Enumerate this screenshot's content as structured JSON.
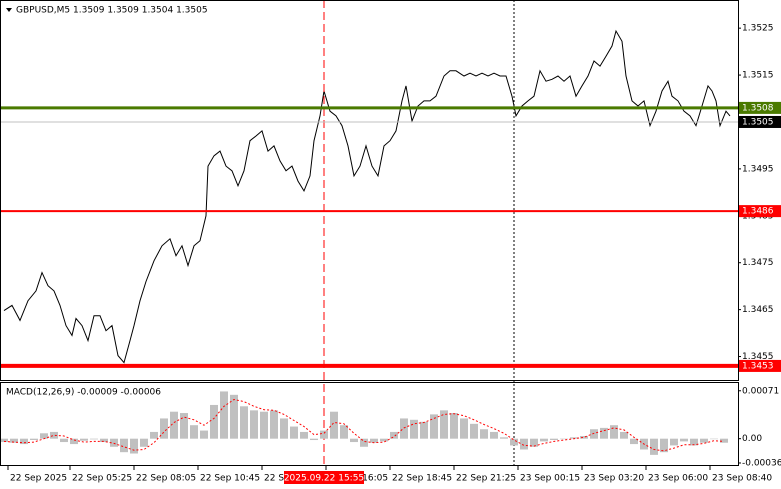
{
  "chart_data": [
    {
      "type": "line",
      "title": "GBPUSD,M5  1.3509 1.3509 1.3504 1.3505",
      "x": [
        0,
        4,
        8,
        12,
        16,
        19,
        22,
        25,
        28,
        31,
        34,
        36,
        39,
        42,
        45,
        48,
        51,
        54,
        57,
        60,
        63,
        65,
        68,
        71,
        75,
        79,
        83,
        86,
        89,
        92,
        95,
        98,
        101,
        102,
        105,
        108,
        111,
        114,
        117,
        120,
        123,
        126,
        129,
        132,
        135,
        138,
        141,
        144,
        147,
        150,
        153,
        155,
        158,
        160,
        163,
        166,
        169,
        172,
        175,
        178,
        181,
        184,
        187,
        190,
        193,
        196,
        199,
        201,
        204,
        207,
        210,
        213,
        216,
        220,
        223,
        226,
        230,
        233,
        236,
        239,
        242,
        245,
        248,
        251,
        254,
        256,
        259,
        262,
        265,
        268,
        271,
        274,
        277,
        280,
        283,
        286,
        289,
        292,
        295,
        298,
        301,
        304,
        306,
        309,
        311,
        314,
        317,
        320,
        323,
        326,
        329,
        332,
        334,
        337,
        340,
        343,
        346,
        349,
        352,
        354,
        356,
        358,
        361,
        363
      ],
      "series": [
        {
          "color": "#000000",
          "values": [
            1.34648,
            1.34659,
            1.34627,
            1.34669,
            1.3469,
            1.34729,
            1.34701,
            1.3469,
            1.34659,
            1.34616,
            1.34595,
            1.34631,
            1.34616,
            1.34584,
            1.34637,
            1.34637,
            1.34605,
            1.34616,
            1.34552,
            1.34537,
            1.34584,
            1.34616,
            1.34669,
            1.3471,
            1.34754,
            1.34786,
            1.34801,
            1.34765,
            1.34786,
            1.34744,
            1.34786,
            1.34797,
            1.3485,
            1.34956,
            1.34978,
            1.34988,
            1.34956,
            1.34946,
            1.34914,
            1.34946,
            1.3501,
            1.3502,
            1.35031,
            1.34988,
            1.34999,
            1.34967,
            1.34946,
            1.34956,
            1.34924,
            1.34903,
            1.34935,
            1.3501,
            1.35063,
            1.35116,
            1.35073,
            1.35063,
            1.35042,
            1.34999,
            1.34935,
            1.34956,
            1.34999,
            1.34956,
            1.34935,
            1.34999,
            1.3501,
            1.35031,
            1.35095,
            1.35127,
            1.35052,
            1.35084,
            1.35095,
            1.35095,
            1.35105,
            1.35148,
            1.35159,
            1.35159,
            1.35148,
            1.35154,
            1.35148,
            1.35154,
            1.35148,
            1.35154,
            1.35148,
            1.35148,
            1.35105,
            1.35063,
            1.35084,
            1.35095,
            1.35105,
            1.35159,
            1.35137,
            1.35141,
            1.35148,
            1.35137,
            1.35148,
            1.35105,
            1.35127,
            1.35148,
            1.3518,
            1.35169,
            1.3519,
            1.35212,
            1.35244,
            1.35222,
            1.35148,
            1.35095,
            1.35084,
            1.35095,
            1.35042,
            1.35073,
            1.35116,
            1.35137,
            1.35105,
            1.35095,
            1.35073,
            1.35063,
            1.35042,
            1.35084,
            1.35127,
            1.35116,
            1.35095,
            1.35042,
            1.35073,
            1.35063
          ]
        }
      ],
      "xlim": [
        -2,
        367
      ],
      "ylim": [
        1.345,
        1.3531
      ],
      "yticks": [
        1.3525,
        1.3515,
        1.3505,
        1.3495,
        1.3485,
        1.3475,
        1.3465,
        1.3455
      ],
      "xticks": [
        {
          "value": 2,
          "label": "22 Sep 2025"
        },
        {
          "value": 33,
          "label": "22 Sep 05:25"
        },
        {
          "value": 65,
          "label": "22 Sep 08:05"
        },
        {
          "value": 97,
          "label": "22 Sep 10:45"
        },
        {
          "value": 129,
          "label": "22 Sep 13:25"
        },
        {
          "value": 161,
          "label": "22 Sep 16:05"
        },
        {
          "value": 193,
          "label": "22 Sep 18:45"
        },
        {
          "value": 225,
          "label": "22 Sep 21:25"
        },
        {
          "value": 257,
          "label": "23 Sep 00:15"
        },
        {
          "value": 289,
          "label": "23 Sep 03:20"
        },
        {
          "value": 321,
          "label": "23 Sep 06:00"
        },
        {
          "value": 353,
          "label": "23 Sep 08:40"
        }
      ],
      "levels": [
        {
          "value": 1.3505,
          "color": "#c0c0c0",
          "box": "#000000",
          "width": 1
        },
        {
          "value": 1.3508,
          "color": "#4a7a00",
          "box": "#4a7a00",
          "width": 3
        },
        {
          "value": 1.3486,
          "color": "#ff0000",
          "box": "#ff0000",
          "width": 2
        },
        {
          "value": 1.3453,
          "color": "#ff0000",
          "box": "#ff0000",
          "width": 4
        }
      ],
      "vlines": [
        {
          "value": 160,
          "label": "2025.09.22 15:55",
          "color": "#ff0000",
          "style": "dashed"
        },
        {
          "value": 255,
          "color": "#000000",
          "style": "dotted"
        }
      ]
    },
    {
      "type": "bar",
      "title": "MACD(12,26,9) -0.00009 -0.00006",
      "x": [
        0,
        5,
        10,
        15,
        20,
        25,
        30,
        35,
        40,
        45,
        50,
        55,
        60,
        65,
        70,
        75,
        80,
        85,
        90,
        95,
        100,
        105,
        110,
        115,
        120,
        125,
        130,
        135,
        140,
        145,
        150,
        155,
        160,
        165,
        170,
        175,
        180,
        185,
        190,
        195,
        200,
        205,
        210,
        215,
        220,
        225,
        230,
        235,
        240,
        245,
        250,
        255,
        260,
        265,
        270,
        275,
        280,
        285,
        290,
        295,
        300,
        305,
        310,
        315,
        320,
        325,
        330,
        335,
        340,
        345,
        350,
        355,
        360
      ],
      "xlim": [
        -2,
        367
      ],
      "ylim": [
        -0.00039,
        0.00084
      ],
      "yticks": [
        0.00071,
        {
          "value": 0,
          "label": "0.00"
        },
        -0.00036
      ],
      "series": [
        {
          "type": "bar",
          "color": "#c0c0c0",
          "values": [
            -5e-05,
            -6e-05,
            -8e-05,
            -2e-05,
            8e-05,
            0.0001,
            -5e-05,
            -8e-05,
            -3e-05,
            -1e-05,
            -5e-05,
            -0.00012,
            -0.0002,
            -0.00022,
            -0.00012,
            0.0001,
            0.0003,
            0.0004,
            0.00038,
            0.0002,
            0.00012,
            0.0005,
            0.0007,
            0.00065,
            0.00048,
            0.00042,
            0.0004,
            0.00042,
            0.0003,
            0.00018,
            0.0001,
            -2e-05,
            0.00012,
            0.0004,
            0.0002,
            -5e-05,
            -0.00012,
            -6e-05,
            -4e-05,
            0.0001,
            0.0003,
            0.00028,
            0.00025,
            0.00036,
            0.00042,
            0.00038,
            0.0003,
            0.00022,
            0.00014,
            0.0001,
            2e-05,
            -0.0001,
            -0.00016,
            -0.00012,
            -4e-05,
            -2e-05,
            0,
            2e-05,
            4e-05,
            0.00014,
            0.00016,
            0.0002,
            0.0001,
            -8e-05,
            -0.00016,
            -0.00024,
            -0.0002,
            -0.0001,
            -4e-05,
            -0.0001,
            -6e-05,
            0,
            -6e-05
          ]
        },
        {
          "type": "line",
          "color": "#ff0000",
          "values": [
            -4e-05,
            -5e-05,
            -6e-05,
            -5e-05,
            0,
            5e-05,
            4e-05,
            -2e-05,
            -5e-05,
            -4e-05,
            -4e-05,
            -7e-05,
            -0.00012,
            -0.00017,
            -0.00016,
            -6e-05,
            0.0001,
            0.00024,
            0.00032,
            0.00028,
            0.0002,
            0.0003,
            0.00048,
            0.00058,
            0.00055,
            0.00048,
            0.00043,
            0.00042,
            0.00036,
            0.00027,
            0.00018,
            6e-05,
            8e-05,
            0.00024,
            0.00022,
            8e-05,
            -4e-05,
            -6e-05,
            -5e-05,
            3e-05,
            0.00016,
            0.00022,
            0.00024,
            0.0003,
            0.00036,
            0.00037,
            0.00034,
            0.00028,
            0.00021,
            0.00015,
            8e-05,
            -2e-05,
            -0.0001,
            -0.00011,
            -7e-05,
            -4e-05,
            -2e-05,
            0,
            2e-05,
            8e-05,
            0.00012,
            0.00016,
            0.00013,
            2e-05,
            -8e-05,
            -0.00016,
            -0.00018,
            -0.00014,
            -9e-05,
            -9e-05,
            -7e-05,
            -3e-05,
            -4e-05
          ]
        }
      ]
    }
  ]
}
